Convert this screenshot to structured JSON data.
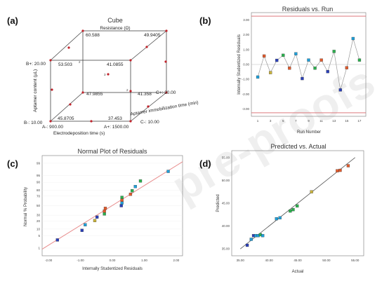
{
  "panels": {
    "a": {
      "letter": "(a)"
    },
    "b": {
      "letter": "(b)"
    },
    "c": {
      "letter": "(c)"
    },
    "d": {
      "letter": "(d)"
    }
  },
  "watermark": "pre-proofs",
  "cube": {
    "title": "Cube",
    "subtitle": "Resistance (Ω)",
    "axis_b_label": "Aptamer content (µL)",
    "b_plus": "B+: 20.00",
    "b_minus": "B-: 10.00",
    "a_minus": "A-: 900.00",
    "a_plus": "A+: 1500.00",
    "a_label": "Electrodeposition time (s)",
    "c_plus": "C+: 30.00",
    "c_minus": "C-: 10.00",
    "c_label": "Aptamer immobilization time (min)",
    "values": {
      "back_top_left": "60.588",
      "back_top_right": "49.9405",
      "front_top_left": "53.503",
      "front_top_right": "41.0855",
      "back_bottom_left": "47.9855",
      "back_bottom_right": "41.358",
      "front_bottom_left": "45.8705",
      "front_bottom_right": "37.453"
    },
    "center_marker": "3",
    "corner_markers": [
      "2",
      "2"
    ]
  },
  "chart_data": [
    {
      "type": "line",
      "title": "Residuals vs. Run",
      "xlabel": "Run Number",
      "ylabel": "Internally Studentized Residuals",
      "xlim": [
        0,
        18
      ],
      "ylim": [
        -3.5,
        3.5
      ],
      "xticks": [
        1,
        3,
        5,
        7,
        9,
        11,
        13,
        15,
        17
      ],
      "yticks": [
        -3,
        -2,
        -1,
        0,
        1,
        2,
        3
      ],
      "ytick_labels": [
        "-3.00",
        "-2.00",
        "-1.00",
        "0.00",
        "1.00",
        "2.00",
        "3.00"
      ],
      "limit_lines": [
        3.26,
        -3.26
      ],
      "x": [
        1,
        2,
        3,
        4,
        5,
        6,
        7,
        8,
        9,
        10,
        11,
        12,
        13,
        14,
        15,
        16,
        17
      ],
      "values": [
        -0.85,
        0.57,
        -0.55,
        0.28,
        0.62,
        -0.25,
        0.72,
        -0.95,
        0.3,
        -0.25,
        0.3,
        -0.48,
        0.88,
        -1.72,
        -0.22,
        1.75,
        0.3
      ],
      "point_colors": [
        "#1f9fd8",
        "#e05a2c",
        "#c8b23c",
        "#2a3fb8",
        "#2bb04e",
        "#e05a2c",
        "#1f9fd8",
        "#2a3fb8",
        "#1f9fd8",
        "#2bb04e",
        "#e05a2c",
        "#2a3fb8",
        "#2bb04e",
        "#2a3fb8",
        "#e05a2c",
        "#1f9fd8",
        "#2bb04e"
      ]
    },
    {
      "type": "scatter",
      "title": "Normal Plot of Residuals",
      "xlabel": "Internally Studentized Residuals",
      "ylabel": "Normal % Probability",
      "xlim": [
        -2.2,
        2.2
      ],
      "xticks": [
        -2,
        -1,
        0,
        1,
        2
      ],
      "xtick_labels": [
        "-2.00",
        "-1.00",
        "0.00",
        "1.00",
        "2.00"
      ],
      "yticks": [
        1,
        5,
        10,
        20,
        30,
        50,
        70,
        80,
        90,
        95,
        99
      ],
      "ylim_prob": [
        0.3,
        99.7
      ],
      "fit_line": [
        [
          -2.2,
          0.85
        ],
        [
          2.2,
          99.2
        ]
      ],
      "points": [
        {
          "x": -1.72,
          "p": 3.0,
          "color": "#2a3fb8"
        },
        {
          "x": -0.95,
          "p": 8.8,
          "color": "#2a3fb8"
        },
        {
          "x": -0.85,
          "p": 14.7,
          "color": "#1f9fd8"
        },
        {
          "x": -0.55,
          "p": 20.6,
          "color": "#c8b23c"
        },
        {
          "x": -0.48,
          "p": 26.5,
          "color": "#2a3fb8"
        },
        {
          "x": -0.25,
          "p": 32.4,
          "color": "#2bb04e"
        },
        {
          "x": -0.25,
          "p": 38.2,
          "color": "#e05a2c"
        },
        {
          "x": -0.22,
          "p": 44.1,
          "color": "#e05a2c"
        },
        {
          "x": 0.28,
          "p": 50.0,
          "color": "#2a3fb8"
        },
        {
          "x": 0.3,
          "p": 55.9,
          "color": "#1f9fd8"
        },
        {
          "x": 0.3,
          "p": 61.8,
          "color": "#e05a2c"
        },
        {
          "x": 0.3,
          "p": 67.6,
          "color": "#2bb04e"
        },
        {
          "x": 0.57,
          "p": 73.5,
          "color": "#e05a2c"
        },
        {
          "x": 0.62,
          "p": 79.4,
          "color": "#2bb04e"
        },
        {
          "x": 0.72,
          "p": 85.3,
          "color": "#1f9fd8"
        },
        {
          "x": 0.88,
          "p": 91.2,
          "color": "#2bb04e"
        },
        {
          "x": 1.75,
          "p": 97.0,
          "color": "#1f9fd8"
        }
      ]
    },
    {
      "type": "scatter",
      "title": "Predicted vs. Actual",
      "xlabel": "Actual",
      "ylabel": "Predicted",
      "xlim": [
        33.5,
        56.5
      ],
      "ylim": [
        33.5,
        56.5
      ],
      "xticks": [
        35,
        40,
        45,
        50,
        55
      ],
      "xtick_labels": [
        "35.00",
        "40.00",
        "45.00",
        "50.00",
        "55.00"
      ],
      "yticks": [
        35,
        40,
        45,
        50,
        55
      ],
      "ytick_labels": [
        "35.00",
        "40.00",
        "45.00",
        "50.00",
        "55.00"
      ],
      "fit_line": [
        [
          35,
          35
        ],
        [
          55,
          55
        ]
      ],
      "points": [
        {
          "x": 36.2,
          "y": 35.8,
          "color": "#2a3fb8"
        },
        {
          "x": 36.9,
          "y": 37.1,
          "color": "#1f9fd8"
        },
        {
          "x": 37.3,
          "y": 37.9,
          "color": "#2a3fb8"
        },
        {
          "x": 37.7,
          "y": 37.9,
          "color": "#1f9fd8"
        },
        {
          "x": 38.1,
          "y": 37.9,
          "color": "#1f9fd8"
        },
        {
          "x": 38.5,
          "y": 38.1,
          "color": "#2bb04e"
        },
        {
          "x": 38.9,
          "y": 37.9,
          "color": "#1f9fd8"
        },
        {
          "x": 41.3,
          "y": 41.6,
          "color": "#1f9fd8"
        },
        {
          "x": 41.9,
          "y": 41.8,
          "color": "#1f9fd8"
        },
        {
          "x": 43.7,
          "y": 43.3,
          "color": "#2bb04e"
        },
        {
          "x": 44.2,
          "y": 43.6,
          "color": "#2bb04e"
        },
        {
          "x": 44.9,
          "y": 44.4,
          "color": "#2bb04e"
        },
        {
          "x": 47.4,
          "y": 47.5,
          "color": "#c8b23c"
        },
        {
          "x": 51.9,
          "y": 52.1,
          "color": "#e05a2c"
        },
        {
          "x": 52.4,
          "y": 52.2,
          "color": "#e05a2c"
        },
        {
          "x": 53.8,
          "y": 53.2,
          "color": "#e05a2c"
        }
      ]
    }
  ]
}
